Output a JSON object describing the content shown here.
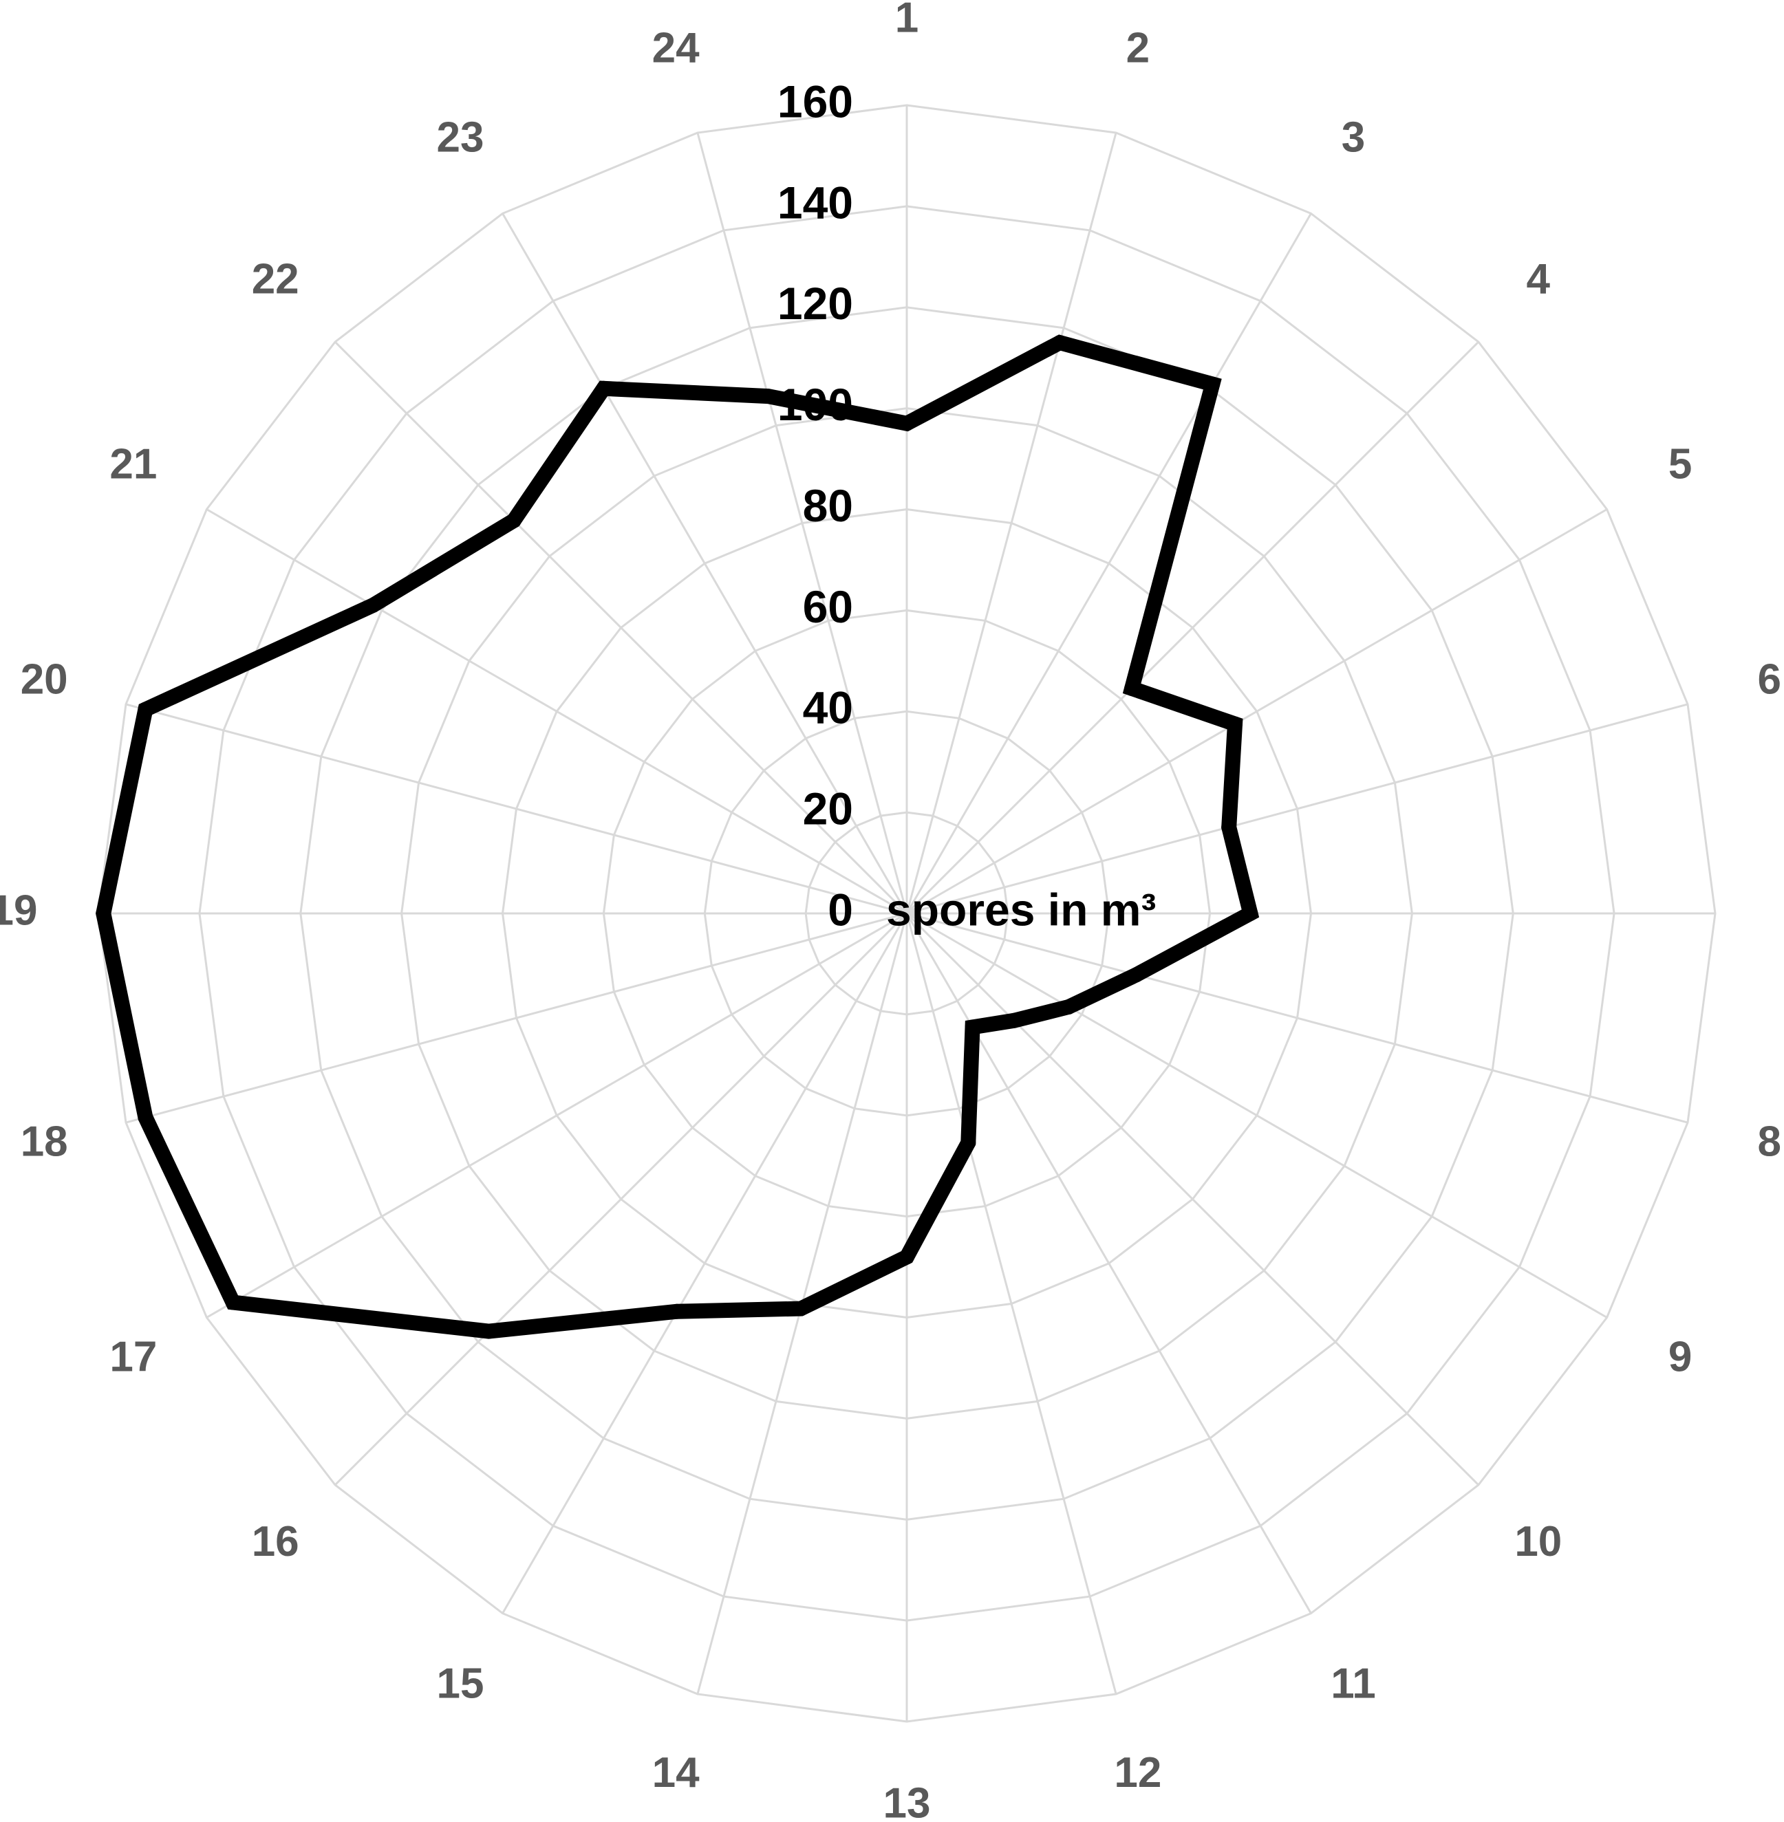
{
  "chart_data": {
    "type": "radar",
    "title": "",
    "unit_label": "spores in m³",
    "categories": [
      "1",
      "2",
      "3",
      "4",
      "5",
      "6",
      "7",
      "8",
      "9",
      "10",
      "11",
      "12",
      "13",
      "14",
      "15",
      "16",
      "17",
      "18",
      "19",
      "20",
      "21",
      "22",
      "23",
      "24"
    ],
    "ticks": [
      0,
      20,
      40,
      60,
      80,
      100,
      120,
      140,
      160
    ],
    "rlim": [
      0,
      160
    ],
    "grid": true,
    "series": [
      {
        "values": [
          97,
          117,
          121,
          63,
          75,
          66,
          68,
          47,
          37,
          30,
          26,
          47,
          68,
          81,
          91,
          117,
          154,
          156,
          159,
          156,
          122,
          110,
          120,
          106
        ]
      }
    ],
    "colors": {
      "series": "#000000",
      "grid": "#d9d9d9",
      "category_label": "#595959",
      "tick_label": "#000000"
    }
  }
}
